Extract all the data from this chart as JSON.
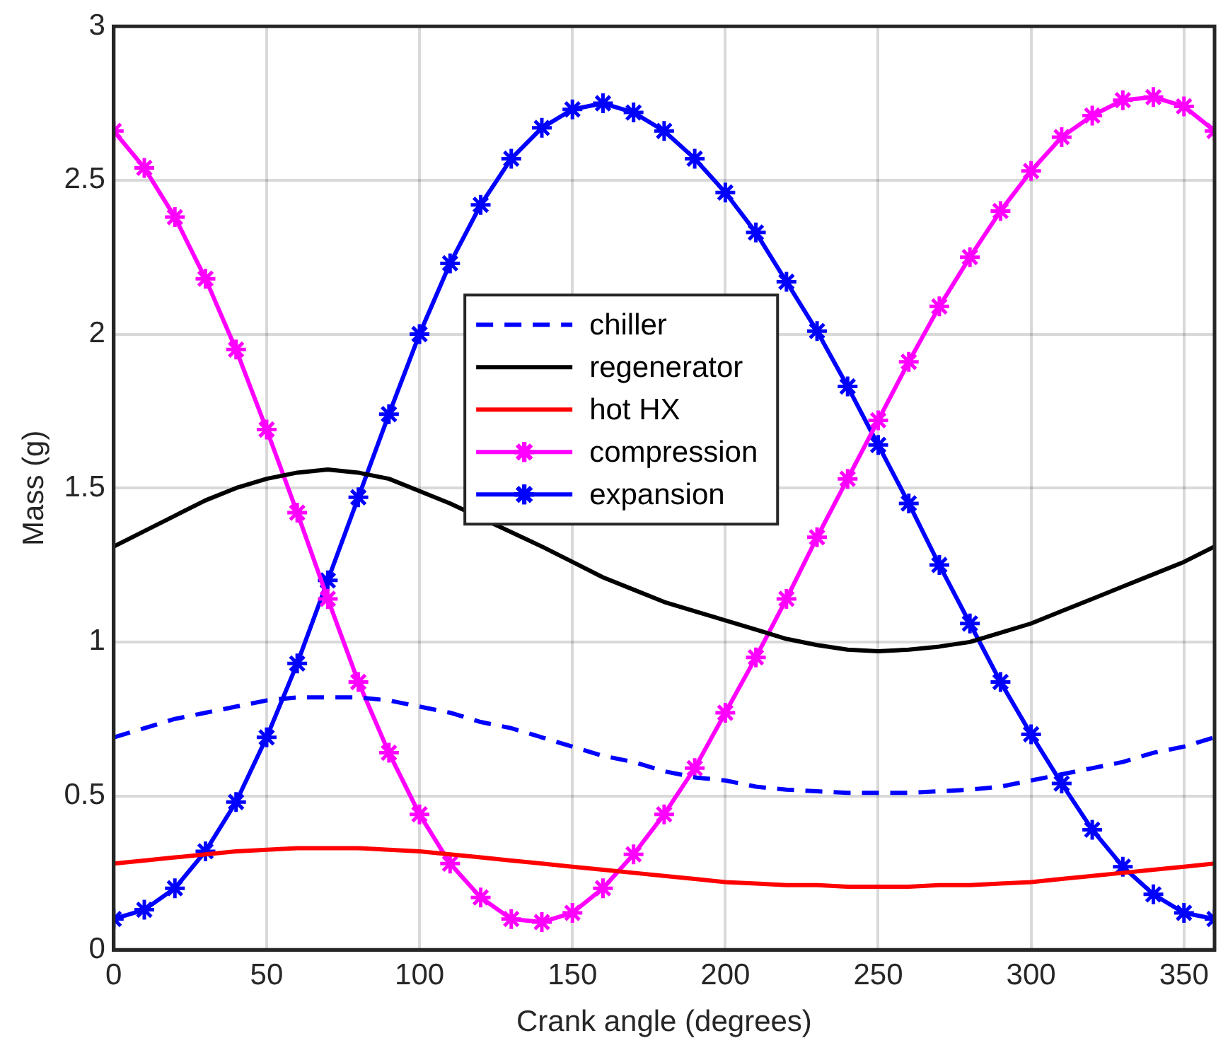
{
  "chart_data": {
    "type": "line",
    "xlabel": "Crank angle (degrees)",
    "ylabel": "Mass (g)",
    "x": [
      0,
      10,
      20,
      30,
      40,
      50,
      60,
      70,
      80,
      90,
      100,
      110,
      120,
      130,
      140,
      150,
      160,
      170,
      180,
      190,
      200,
      210,
      220,
      230,
      240,
      250,
      260,
      270,
      280,
      290,
      300,
      310,
      320,
      330,
      340,
      350,
      360
    ],
    "xlim": [
      0,
      360
    ],
    "xticks": [
      0,
      50,
      100,
      150,
      200,
      250,
      300,
      350
    ],
    "ylim": [
      0,
      3
    ],
    "yticks": [
      0,
      0.5,
      1,
      1.5,
      2,
      2.5,
      3
    ],
    "grid": true,
    "legend": "center",
    "series": [
      {
        "name": "chiller",
        "color": "#0000ff",
        "line_style": "dashed",
        "marker": "none",
        "values": [
          0.69,
          0.72,
          0.75,
          0.77,
          0.79,
          0.81,
          0.82,
          0.82,
          0.82,
          0.81,
          0.79,
          0.77,
          0.74,
          0.72,
          0.69,
          0.66,
          0.63,
          0.61,
          0.58,
          0.56,
          0.55,
          0.53,
          0.52,
          0.515,
          0.51,
          0.51,
          0.51,
          0.515,
          0.52,
          0.53,
          0.55,
          0.57,
          0.59,
          0.61,
          0.64,
          0.66,
          0.69
        ]
      },
      {
        "name": "regenerator",
        "color": "#000000",
        "line_style": "solid",
        "marker": "none",
        "values": [
          1.31,
          1.36,
          1.41,
          1.46,
          1.5,
          1.53,
          1.55,
          1.56,
          1.55,
          1.53,
          1.49,
          1.45,
          null,
          null,
          1.31,
          1.26,
          1.21,
          1.17,
          1.13,
          1.1,
          1.07,
          1.04,
          1.01,
          0.99,
          0.975,
          0.97,
          0.975,
          0.985,
          1.0,
          1.03,
          1.06,
          1.1,
          1.14,
          1.18,
          1.22,
          1.26,
          1.31
        ]
      },
      {
        "name": "hot HX",
        "color": "#ff0000",
        "line_style": "solid",
        "marker": "none",
        "values": [
          0.28,
          0.29,
          0.3,
          0.31,
          0.32,
          0.325,
          0.33,
          0.33,
          0.33,
          0.325,
          0.32,
          0.31,
          0.3,
          0.29,
          0.28,
          0.27,
          0.26,
          0.25,
          0.24,
          0.23,
          0.22,
          0.215,
          0.21,
          0.21,
          0.205,
          0.205,
          0.205,
          0.21,
          0.21,
          0.215,
          0.22,
          0.23,
          0.24,
          0.25,
          0.26,
          0.27,
          0.28
        ]
      },
      {
        "name": "compression",
        "color": "#ff00ff",
        "line_style": "solid",
        "marker": "cross",
        "values": [
          2.66,
          2.54,
          2.38,
          2.18,
          1.95,
          1.69,
          1.42,
          1.14,
          0.87,
          0.64,
          0.44,
          0.28,
          0.17,
          0.1,
          0.09,
          0.12,
          0.2,
          0.31,
          0.44,
          0.59,
          0.77,
          0.95,
          1.14,
          1.34,
          1.53,
          1.72,
          1.91,
          2.09,
          2.25,
          2.4,
          2.53,
          2.64,
          2.71,
          2.76,
          2.77,
          2.74,
          2.66
        ]
      },
      {
        "name": "expansion",
        "color": "#0000ff",
        "line_style": "solid",
        "marker": "cross",
        "values": [
          0.1,
          0.13,
          0.2,
          0.32,
          0.48,
          0.69,
          0.93,
          1.2,
          1.47,
          1.74,
          2.0,
          2.23,
          2.42,
          2.57,
          2.67,
          2.73,
          2.75,
          2.72,
          2.66,
          2.57,
          2.46,
          2.33,
          2.17,
          2.01,
          1.83,
          1.64,
          1.45,
          1.25,
          1.06,
          0.87,
          0.7,
          0.54,
          0.39,
          0.27,
          0.18,
          0.12,
          0.1
        ]
      }
    ]
  }
}
